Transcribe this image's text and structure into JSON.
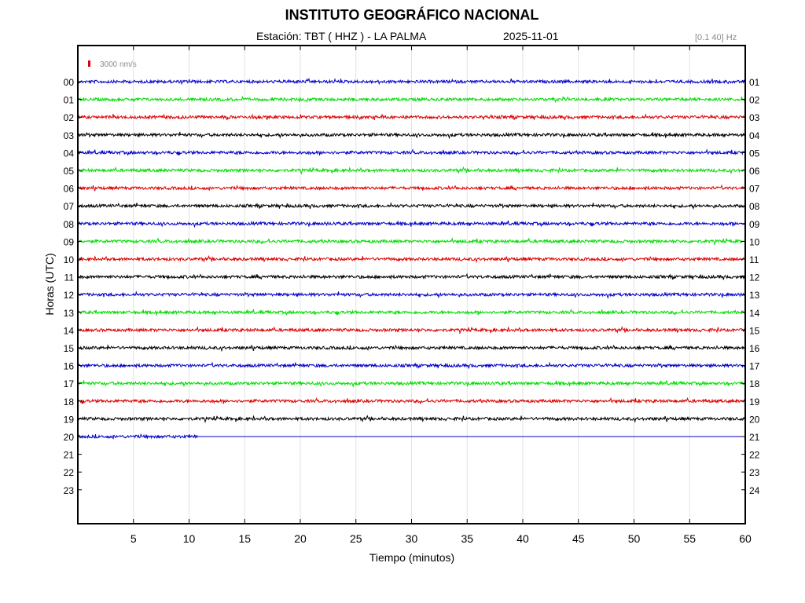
{
  "header": {
    "title": "INSTITUTO GEOGRÁFICO NACIONAL",
    "station": "Estación:  TBT ( HHZ ) - LA PALMA",
    "date": "2025-11-01",
    "filter": "[0.1 40] Hz"
  },
  "chart_data": {
    "type": "line",
    "title": "INSTITUTO GEOGRÁFICO NACIONAL",
    "xlabel": "Tiempo (minutos)",
    "ylabel": "Horas (UTC)",
    "xlim": [
      0,
      60
    ],
    "x_ticks": [
      5,
      10,
      15,
      20,
      25,
      30,
      35,
      40,
      45,
      50,
      55,
      60
    ],
    "left_hour_labels": [
      "00",
      "01",
      "02",
      "03",
      "04",
      "05",
      "06",
      "07",
      "08",
      "09",
      "10",
      "11",
      "12",
      "13",
      "14",
      "15",
      "16",
      "17",
      "18",
      "19",
      "20",
      "21",
      "22",
      "23"
    ],
    "right_hour_labels": [
      "01",
      "02",
      "03",
      "04",
      "05",
      "06",
      "07",
      "08",
      "09",
      "10",
      "11",
      "12",
      "13",
      "14",
      "15",
      "16",
      "17",
      "18",
      "19",
      "20",
      "21",
      "22",
      "23",
      "24"
    ],
    "scale_label": "3000 nm/s",
    "trace_colors": [
      "#0000cc",
      "#00dd00",
      "#dd0000",
      "#000000"
    ],
    "scale_color": "#dd0000",
    "grid": true,
    "traces": [
      {
        "hour": "00",
        "color": "#0000cc",
        "end_minute": 60
      },
      {
        "hour": "01",
        "color": "#00dd00",
        "end_minute": 60
      },
      {
        "hour": "02",
        "color": "#dd0000",
        "end_minute": 60
      },
      {
        "hour": "03",
        "color": "#000000",
        "end_minute": 60
      },
      {
        "hour": "04",
        "color": "#0000cc",
        "end_minute": 60
      },
      {
        "hour": "05",
        "color": "#00dd00",
        "end_minute": 60
      },
      {
        "hour": "06",
        "color": "#dd0000",
        "end_minute": 60
      },
      {
        "hour": "07",
        "color": "#000000",
        "end_minute": 60
      },
      {
        "hour": "08",
        "color": "#0000cc",
        "end_minute": 60
      },
      {
        "hour": "09",
        "color": "#00dd00",
        "end_minute": 60
      },
      {
        "hour": "10",
        "color": "#dd0000",
        "end_minute": 60
      },
      {
        "hour": "11",
        "color": "#000000",
        "end_minute": 60
      },
      {
        "hour": "12",
        "color": "#0000cc",
        "end_minute": 60
      },
      {
        "hour": "13",
        "color": "#00dd00",
        "end_minute": 60
      },
      {
        "hour": "14",
        "color": "#dd0000",
        "end_minute": 60
      },
      {
        "hour": "15",
        "color": "#000000",
        "end_minute": 60
      },
      {
        "hour": "16",
        "color": "#0000cc",
        "end_minute": 60
      },
      {
        "hour": "17",
        "color": "#00dd00",
        "end_minute": 60
      },
      {
        "hour": "18",
        "color": "#dd0000",
        "end_minute": 60
      },
      {
        "hour": "19",
        "color": "#000000",
        "end_minute": 60
      },
      {
        "hour": "20",
        "color": "#0000cc",
        "end_minute": 10.8,
        "flat_until": 60
      }
    ]
  }
}
